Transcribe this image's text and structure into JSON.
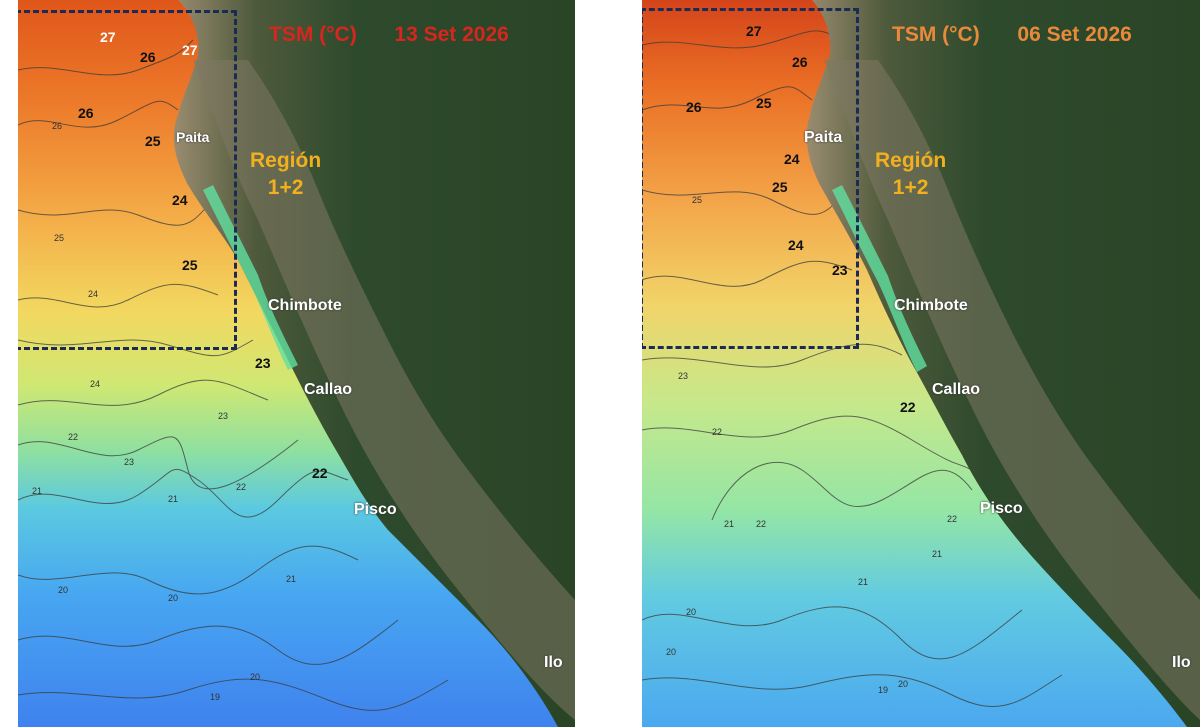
{
  "colors": {
    "title_a": "#d7261d",
    "title_b": "#e9893a",
    "region_label": "#f2b01e",
    "box_border": "#1c2b55",
    "land": "#2f4a2a",
    "coast": "#8a7f68"
  },
  "panels": [
    {
      "id": "a",
      "title_var": "TSM (°C)",
      "title_date": "13 Set 2026",
      "region": {
        "line1": "Región",
        "line2": "1+2"
      },
      "cities": [
        "Paita",
        "Chimbote",
        "Callao",
        "Pisco"
      ],
      "isotherm_labels": [
        "27",
        "26",
        "27",
        "26",
        "25",
        "24",
        "25",
        "23",
        "22"
      ],
      "contour_minor_labels": [
        "26",
        "25",
        "24",
        "24",
        "23",
        "23",
        "22",
        "21",
        "21",
        "20",
        "20",
        "20",
        "19",
        "21",
        "22"
      ]
    },
    {
      "id": "b",
      "title_var": "TSM (°C)",
      "title_date": "06 Set 2026",
      "region": {
        "line1": "Región",
        "line2": "1+2"
      },
      "cities": [
        "Paita",
        "Chimbote",
        "Callao",
        "Pisco",
        "Ilo"
      ],
      "isotherm_labels": [
        "27",
        "26",
        "26",
        "25",
        "24",
        "25",
        "24",
        "23",
        "22"
      ],
      "contour_minor_labels": [
        "25",
        "23",
        "22",
        "21",
        "22",
        "21",
        "20",
        "20",
        "20",
        "19",
        "21",
        "22"
      ]
    }
  ],
  "panel_a_extra_city": "Ilo"
}
